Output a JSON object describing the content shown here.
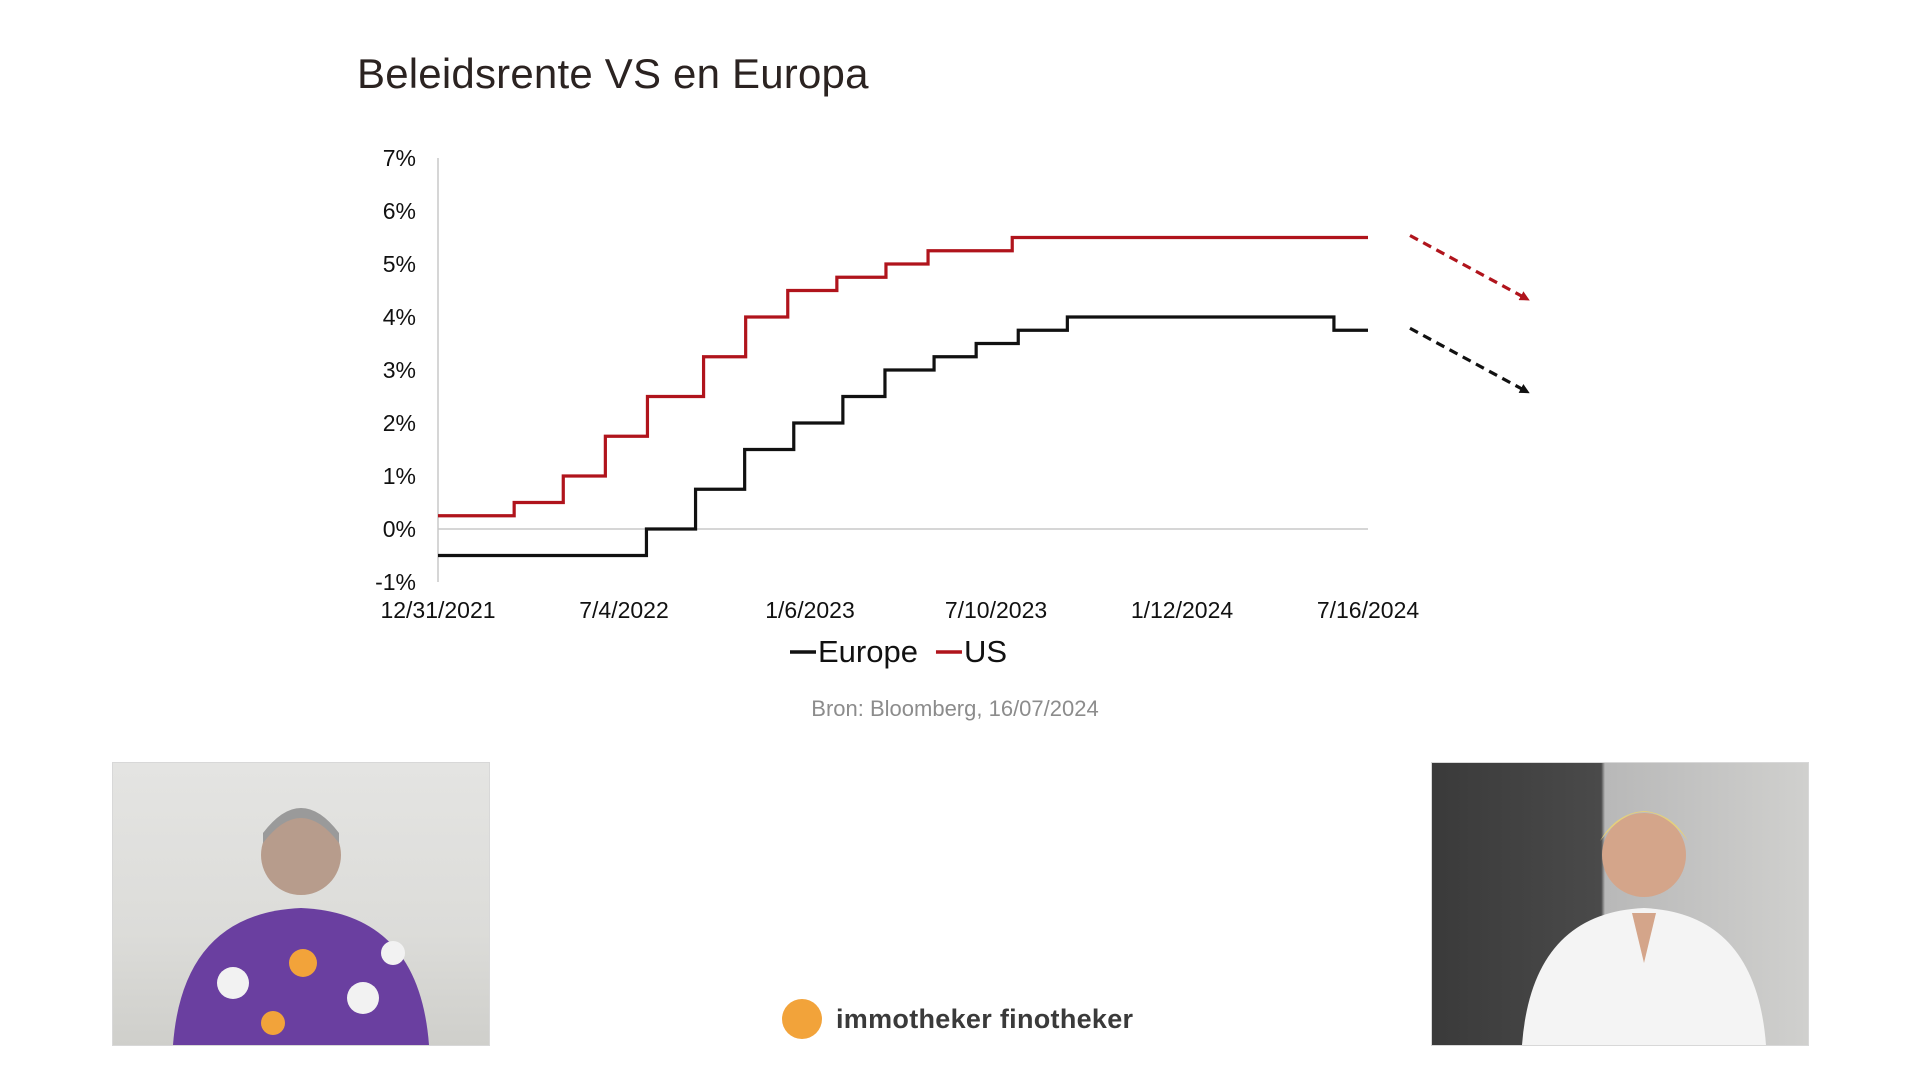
{
  "slide": {
    "source": "Bron: Bloomberg, 16/07/2024"
  },
  "brand": {
    "name": "immotheker finotheker",
    "color": "#f2a33a"
  },
  "participants": [
    {
      "role": "guest-video",
      "icon": "person-video-icon"
    },
    {
      "role": "host-video",
      "icon": "person-video-icon"
    }
  ],
  "chart_data": {
    "type": "line",
    "title": "Beleidsrente VS en Europa",
    "xlabel": "",
    "ylabel": "",
    "x_tick_labels": [
      "12/31/2021",
      "7/4/2022",
      "1/6/2023",
      "7/10/2023",
      "1/12/2024",
      "7/16/2024"
    ],
    "x_range": [
      "2021-12-31",
      "2024-07-16"
    ],
    "y_tick_labels": [
      "-1%",
      "0%",
      "1%",
      "2%",
      "3%",
      "4%",
      "5%",
      "6%",
      "7%"
    ],
    "ylim": [
      -1,
      7
    ],
    "step": true,
    "grid": false,
    "legend": "bottom",
    "series": [
      {
        "name": "Europe",
        "color": "#111111",
        "points": [
          [
            "2021-12-31",
            -0.5
          ],
          [
            "2022-07-27",
            0.0
          ],
          [
            "2022-09-14",
            0.75
          ],
          [
            "2022-11-02",
            1.5
          ],
          [
            "2022-12-21",
            2.0
          ],
          [
            "2023-02-08",
            2.5
          ],
          [
            "2023-03-22",
            3.0
          ],
          [
            "2023-05-10",
            3.25
          ],
          [
            "2023-06-21",
            3.5
          ],
          [
            "2023-08-02",
            3.75
          ],
          [
            "2023-09-20",
            4.0
          ],
          [
            "2024-06-12",
            3.75
          ],
          [
            "2024-07-16",
            3.75
          ]
        ],
        "trend": "down"
      },
      {
        "name": "US",
        "color": "#b0141c",
        "points": [
          [
            "2021-12-31",
            0.25
          ],
          [
            "2022-03-17",
            0.5
          ],
          [
            "2022-05-05",
            1.0
          ],
          [
            "2022-06-16",
            1.75
          ],
          [
            "2022-07-28",
            2.5
          ],
          [
            "2022-09-22",
            3.25
          ],
          [
            "2022-11-03",
            4.0
          ],
          [
            "2022-12-15",
            4.5
          ],
          [
            "2023-02-02",
            4.75
          ],
          [
            "2023-03-23",
            5.0
          ],
          [
            "2023-05-04",
            5.25
          ],
          [
            "2023-07-27",
            5.5
          ],
          [
            "2024-07-16",
            5.5
          ]
        ],
        "trend": "down"
      }
    ]
  }
}
